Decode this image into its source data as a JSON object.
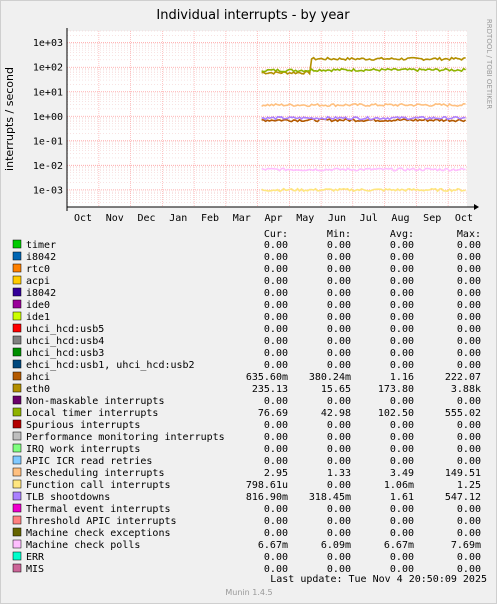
{
  "chart_data": {
    "type": "line",
    "title": "Individual interrupts - by year",
    "ylabel": "interrupts / second",
    "side_label": "RRDTOOL / TOBI OETIKER",
    "yscale": "log",
    "ylim": [
      0.0002,
      3000
    ],
    "y_ticks": [
      "1e-03",
      "1e-02",
      "1e-01",
      "1e+00",
      "1e+01",
      "1e+02",
      "1e+03"
    ],
    "x_ticks": [
      "Oct",
      "Nov",
      "Dec",
      "Jan",
      "Feb",
      "Mar",
      "Apr",
      "May",
      "Jun",
      "Jul",
      "Aug",
      "Sep",
      "Oct"
    ],
    "grid": true,
    "legend_columns": [
      "Cur:",
      "Min:",
      "Avg:",
      "Max:"
    ],
    "series": [
      {
        "name": "timer",
        "color": "#00cc00",
        "cur": "0.00",
        "min": "0.00",
        "avg": "0.00",
        "max": "0.00"
      },
      {
        "name": "i8042",
        "color": "#0066b3",
        "cur": "0.00",
        "min": "0.00",
        "avg": "0.00",
        "max": "0.00"
      },
      {
        "name": "rtc0",
        "color": "#ff8000",
        "cur": "0.00",
        "min": "0.00",
        "avg": "0.00",
        "max": "0.00"
      },
      {
        "name": "acpi",
        "color": "#ffcc00",
        "cur": "0.00",
        "min": "0.00",
        "avg": "0.00",
        "max": "0.00"
      },
      {
        "name": "i8042",
        "color": "#330099",
        "cur": "0.00",
        "min": "0.00",
        "avg": "0.00",
        "max": "0.00"
      },
      {
        "name": "ide0",
        "color": "#990099",
        "cur": "0.00",
        "min": "0.00",
        "avg": "0.00",
        "max": "0.00"
      },
      {
        "name": "ide1",
        "color": "#ccff00",
        "cur": "0.00",
        "min": "0.00",
        "avg": "0.00",
        "max": "0.00"
      },
      {
        "name": "uhci_hcd:usb5",
        "color": "#ff0000",
        "cur": "0.00",
        "min": "0.00",
        "avg": "0.00",
        "max": "0.00"
      },
      {
        "name": "uhci_hcd:usb4",
        "color": "#808080",
        "cur": "0.00",
        "min": "0.00",
        "avg": "0.00",
        "max": "0.00"
      },
      {
        "name": "uhci_hcd:usb3",
        "color": "#008f00",
        "cur": "0.00",
        "min": "0.00",
        "avg": "0.00",
        "max": "0.00"
      },
      {
        "name": "ehci_hcd:usb1, uhci_hcd:usb2",
        "color": "#00487d",
        "cur": "0.00",
        "min": "0.00",
        "avg": "0.00",
        "max": "0.00"
      },
      {
        "name": "ahci",
        "color": "#b35a00",
        "cur": "635.60m",
        "min": "380.24m",
        "avg": "1.16",
        "max": "222.07"
      },
      {
        "name": "eth0",
        "color": "#b38f00",
        "cur": "235.13",
        "min": "15.65",
        "avg": "173.80",
        "max": "3.88k"
      },
      {
        "name": "Non-maskable interrupts",
        "color": "#6b006b",
        "cur": "0.00",
        "min": "0.00",
        "avg": "0.00",
        "max": "0.00"
      },
      {
        "name": "Local timer interrupts",
        "color": "#8fb300",
        "cur": "76.69",
        "min": "42.98",
        "avg": "102.50",
        "max": "555.02"
      },
      {
        "name": "Spurious interrupts",
        "color": "#b30000",
        "cur": "0.00",
        "min": "0.00",
        "avg": "0.00",
        "max": "0.00"
      },
      {
        "name": "Performance monitoring interrupts",
        "color": "#bebebe",
        "cur": "0.00",
        "min": "0.00",
        "avg": "0.00",
        "max": "0.00"
      },
      {
        "name": "IRQ work interrupts",
        "color": "#80ff80",
        "cur": "0.00",
        "min": "0.00",
        "avg": "0.00",
        "max": "0.00"
      },
      {
        "name": "APIC ICR read retries",
        "color": "#80c9ff",
        "cur": "0.00",
        "min": "0.00",
        "avg": "0.00",
        "max": "0.00"
      },
      {
        "name": "Rescheduling interrupts",
        "color": "#ffc080",
        "cur": "2.95",
        "min": "1.33",
        "avg": "3.49",
        "max": "149.51"
      },
      {
        "name": "Function call interrupts",
        "color": "#ffe680",
        "cur": "798.61u",
        "min": "0.00",
        "avg": "1.06m",
        "max": "1.25"
      },
      {
        "name": "TLB shootdowns",
        "color": "#aa80ff",
        "cur": "816.90m",
        "min": "318.45m",
        "avg": "1.61",
        "max": "547.12"
      },
      {
        "name": "Thermal event interrupts",
        "color": "#ee00cc",
        "cur": "0.00",
        "min": "0.00",
        "avg": "0.00",
        "max": "0.00"
      },
      {
        "name": "Threshold APIC interrupts",
        "color": "#ff8080",
        "cur": "0.00",
        "min": "0.00",
        "avg": "0.00",
        "max": "0.00"
      },
      {
        "name": "Machine check exceptions",
        "color": "#666600",
        "cur": "0.00",
        "min": "0.00",
        "avg": "0.00",
        "max": "0.00"
      },
      {
        "name": "Machine check polls",
        "color": "#ffbfff",
        "cur": "6.67m",
        "min": "6.09m",
        "avg": "6.67m",
        "max": "7.69m"
      },
      {
        "name": "ERR",
        "color": "#00ffcc",
        "cur": "0.00",
        "min": "0.00",
        "avg": "0.00",
        "max": "0.00"
      },
      {
        "name": "MIS",
        "color": "#cc6699",
        "cur": "0.00",
        "min": "0.00",
        "avg": "0.00",
        "max": "0.00"
      }
    ],
    "trace_levels": {
      "eth0": {
        "base": 220,
        "early": 60
      },
      "Local timer interrupts": {
        "base": 78,
        "early": 75
      },
      "Rescheduling interrupts": {
        "base": 2.9
      },
      "ahci": {
        "base": 0.7
      },
      "TLB shootdowns": {
        "base": 0.85
      },
      "Machine check polls": {
        "base": 0.0068
      },
      "Function call interrupts": {
        "base": 0.001
      }
    },
    "data_start_month_index": 6
  },
  "footer": {
    "last_update": "Last update:  Tue Nov  4 20:50:09 2025",
    "version": "Munin 1.4.5"
  }
}
